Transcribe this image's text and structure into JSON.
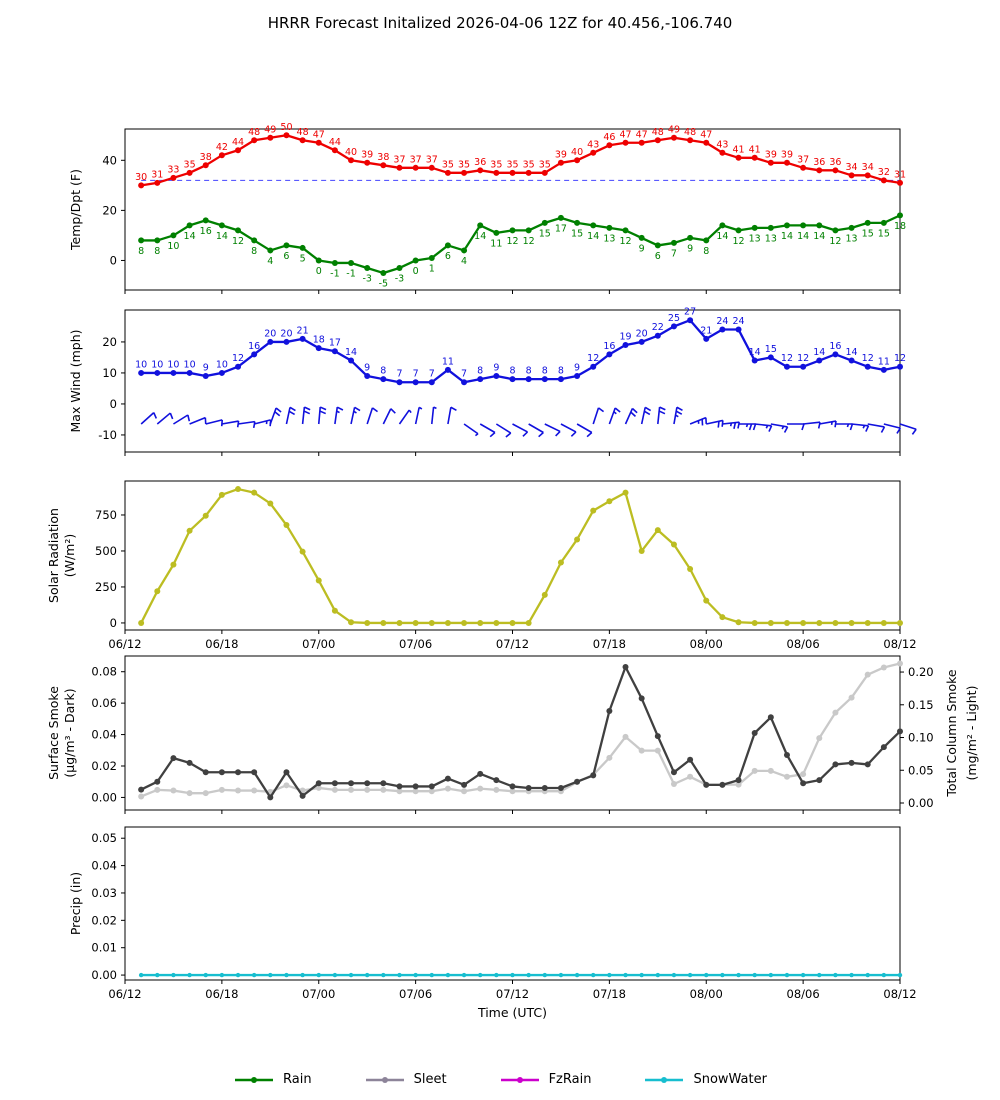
{
  "title": "HRRR Forecast Initalized 2026-04-06 12Z for 40.456,-106.740",
  "x_axis": {
    "label": "Time (UTC)",
    "tick_hours": [
      0,
      6,
      12,
      18,
      24,
      30,
      36,
      42,
      48
    ],
    "tick_labels": [
      "06/12",
      "06/18",
      "07/00",
      "07/06",
      "07/12",
      "07/18",
      "08/00",
      "08/06",
      "08/12"
    ],
    "hours": [
      1,
      2,
      3,
      4,
      5,
      6,
      7,
      8,
      9,
      10,
      11,
      12,
      13,
      14,
      15,
      16,
      17,
      18,
      19,
      20,
      21,
      22,
      23,
      24,
      25,
      26,
      27,
      28,
      29,
      30,
      31,
      32,
      33,
      34,
      35,
      36,
      37,
      38,
      39,
      40,
      41,
      42,
      43,
      44,
      45,
      46,
      47,
      48
    ]
  },
  "colors": {
    "temp": "#ee0000",
    "dewpoint": "#008000",
    "wind": "#1111dd",
    "freeze_line": "#4444ff",
    "solar": "#bcbd22",
    "smoke_dark": "#404040",
    "smoke_light": "#c9c9c9",
    "precip": "#17becf",
    "rain": "#008000",
    "sleet": "#8d8499",
    "fzrain": "#cc00cc",
    "snowwater": "#17becf"
  },
  "chart_data": [
    {
      "type": "line",
      "name": "temp-dpt",
      "ylabel": "Temp/Dpt (F)",
      "yticks": [
        "0",
        "20",
        "40"
      ],
      "ylim": [
        -11.8,
        52.5
      ],
      "freeze_line_value": 32,
      "series": [
        {
          "name": "temperature_F",
          "color_key": "temp",
          "values": [
            30,
            31,
            33,
            35,
            38,
            42,
            44,
            48,
            49,
            50,
            48,
            47,
            44,
            40,
            39,
            38,
            37,
            37,
            37,
            35,
            35,
            36,
            35,
            35,
            35,
            35,
            39,
            40,
            43,
            46,
            47,
            47,
            48,
            49,
            48,
            47,
            43,
            41,
            41,
            39,
            39,
            37,
            36,
            36,
            34,
            34,
            32,
            31
          ],
          "labels_above": true
        },
        {
          "name": "dewpoint_F",
          "color_key": "dewpoint",
          "values": [
            8,
            8,
            10,
            14,
            16,
            14,
            12,
            8,
            4,
            6,
            5,
            0,
            -1,
            -1,
            -3,
            -5,
            -3,
            0,
            1,
            6,
            4,
            14,
            11,
            12,
            12,
            15,
            17,
            15,
            14,
            13,
            12,
            9,
            6,
            7,
            9,
            8,
            14,
            12,
            13,
            13,
            14,
            14,
            14,
            12,
            13,
            15,
            15,
            18
          ],
          "labels_above": false
        }
      ]
    },
    {
      "type": "line",
      "name": "wind",
      "ylabel": "Max Wind (mph)",
      "yticks": [
        "-10",
        "0",
        "10",
        "20"
      ],
      "ylim": [
        -15.5,
        30.3
      ],
      "series": [
        {
          "name": "max_wind_mph",
          "color_key": "wind",
          "values": [
            10,
            10,
            10,
            10,
            9,
            10,
            12,
            16,
            20,
            20,
            21,
            18,
            17,
            14,
            9,
            8,
            7,
            7,
            7,
            11,
            7,
            8,
            9,
            8,
            8,
            8,
            8,
            9,
            12,
            16,
            19,
            20,
            22,
            25,
            27,
            21,
            24,
            24,
            14,
            15,
            12,
            12,
            14,
            16,
            14,
            12,
            11,
            12
          ],
          "labels_above": true
        }
      ],
      "barb_angles_deg": [
        42,
        40,
        32,
        22,
        14,
        10,
        8,
        14,
        70,
        78,
        84,
        85,
        82,
        78,
        72,
        64,
        55,
        78,
        84,
        80,
        -35,
        -30,
        -32,
        -28,
        -30,
        -26,
        -28,
        -30,
        72,
        70,
        66,
        78,
        84,
        80,
        22,
        12,
        6,
        0,
        -6,
        -10,
        0,
        6,
        10,
        0,
        -6,
        -10,
        -14,
        -18
      ]
    },
    {
      "type": "line",
      "name": "solar",
      "ylabel_line1": "Solar Radiation",
      "ylabel_line2": "(W/m²)",
      "yticks": [
        "0",
        "250",
        "500",
        "750"
      ],
      "ylim": [
        -49,
        986
      ],
      "show_x_labels": true,
      "series": [
        {
          "name": "solar_radiation_wm2",
          "color_key": "solar",
          "values": [
            0,
            220,
            405,
            640,
            745,
            890,
            930,
            905,
            830,
            680,
            495,
            295,
            85,
            5,
            0,
            0,
            0,
            0,
            0,
            0,
            0,
            0,
            0,
            0,
            0,
            195,
            420,
            580,
            780,
            845,
            905,
            500,
            645,
            545,
            375,
            155,
            40,
            5,
            0,
            0,
            0,
            0,
            0,
            0,
            0,
            0,
            0,
            0
          ]
        }
      ]
    },
    {
      "type": "line",
      "name": "smoke",
      "ylabel_line1": "Surface Smoke",
      "ylabel_line2": "(μg/m³ - Dark)",
      "ylabel_right_line1": "Total Column Smoke",
      "ylabel_right_line2": "(mg/m² - Light)",
      "yticks": [
        "0.00",
        "0.02",
        "0.04",
        "0.06",
        "0.08"
      ],
      "yticks_right": [
        "0.00",
        "0.05",
        "0.10",
        "0.15",
        "0.20"
      ],
      "ylim": [
        -0.008,
        0.09
      ],
      "ylim_right": [
        -0.0107,
        0.2245
      ],
      "series": [
        {
          "name": "total_column_smoke_mgm2",
          "color_key": "smoke_light",
          "axis": "right",
          "values": [
            0.01,
            0.02,
            0.019,
            0.015,
            0.015,
            0.02,
            0.019,
            0.019,
            0.017,
            0.027,
            0.019,
            0.023,
            0.02,
            0.02,
            0.02,
            0.02,
            0.018,
            0.018,
            0.018,
            0.022,
            0.018,
            0.022,
            0.02,
            0.018,
            0.018,
            0.018,
            0.018,
            0.032,
            0.043,
            0.069,
            0.101,
            0.08,
            0.08,
            0.029,
            0.04,
            0.028,
            0.028,
            0.028,
            0.049,
            0.049,
            0.04,
            0.044,
            0.099,
            0.138,
            0.161,
            0.196,
            0.207,
            0.213
          ]
        },
        {
          "name": "surface_smoke_ugm3",
          "color_key": "smoke_dark",
          "axis": "left",
          "values": [
            0.005,
            0.01,
            0.025,
            0.022,
            0.016,
            0.016,
            0.016,
            0.016,
            0.0,
            0.016,
            0.001,
            0.009,
            0.009,
            0.009,
            0.009,
            0.009,
            0.007,
            0.007,
            0.007,
            0.012,
            0.008,
            0.015,
            0.011,
            0.007,
            0.006,
            0.006,
            0.006,
            0.01,
            0.014,
            0.055,
            0.083,
            0.063,
            0.039,
            0.016,
            0.024,
            0.008,
            0.008,
            0.011,
            0.041,
            0.051,
            0.027,
            0.009,
            0.011,
            0.021,
            0.022,
            0.021,
            0.032,
            0.042
          ]
        }
      ]
    },
    {
      "type": "line",
      "name": "precip",
      "ylabel": "Precip (in)",
      "yticks": [
        "0.00",
        "0.01",
        "0.02",
        "0.03",
        "0.04",
        "0.05"
      ],
      "ylim": [
        -0.0018,
        0.0541
      ],
      "show_x_labels": true,
      "show_x_axis_label": true,
      "series": [
        {
          "name": "snow_water_in",
          "color_key": "precip",
          "values": [
            0,
            0,
            0,
            0,
            0,
            0,
            0,
            0,
            0,
            0,
            0,
            0,
            0,
            0,
            0,
            0,
            0,
            0,
            0,
            0,
            0,
            0,
            0,
            0,
            0,
            0,
            0,
            0,
            0,
            0,
            0,
            0,
            0,
            0,
            0,
            0,
            0,
            0,
            0,
            0,
            0,
            0,
            0,
            0,
            0,
            0,
            0,
            0
          ]
        }
      ]
    }
  ],
  "legend": {
    "items": [
      {
        "label": "Rain",
        "color_key": "rain"
      },
      {
        "label": "Sleet",
        "color_key": "sleet"
      },
      {
        "label": "FzRain",
        "color_key": "fzrain"
      },
      {
        "label": "SnowWater",
        "color_key": "snowwater"
      }
    ]
  }
}
